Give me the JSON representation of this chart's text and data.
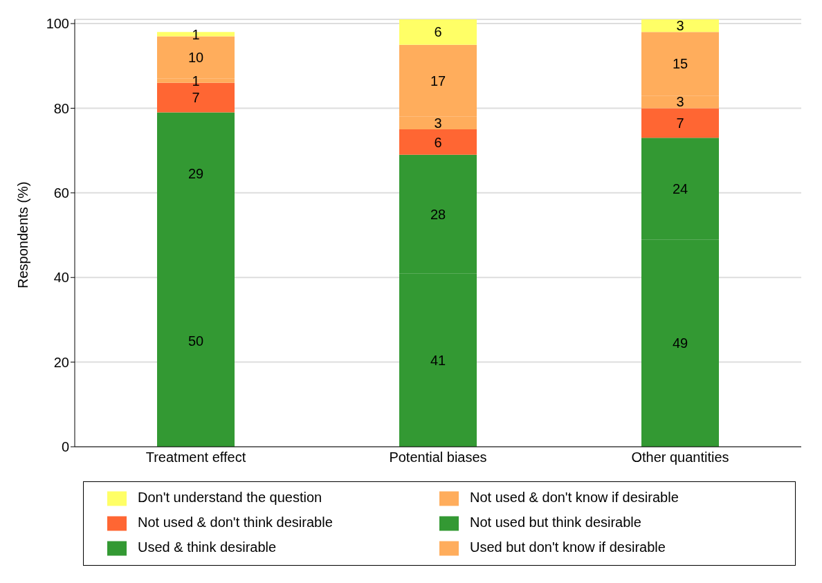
{
  "chart_data": {
    "type": "bar",
    "stacked": true,
    "ylabel": "Respondents (%)",
    "categories": [
      "Treatment effect",
      "Potential biases",
      "Other quantities"
    ],
    "series": [
      {
        "name": "Used & think desirable",
        "color": "#339933",
        "values": [
          50,
          41,
          49
        ]
      },
      {
        "name": "Not used but think desirable",
        "color": "#339933",
        "values": [
          29,
          28,
          24
        ]
      },
      {
        "name": "Not used & don't think desirable",
        "color": "#ff6633",
        "values": [
          7,
          6,
          7
        ]
      },
      {
        "name": "Used but don't know if desirable",
        "color": "#ffad5c",
        "values": [
          1,
          3,
          3
        ]
      },
      {
        "name": "Not used & don't know if desirable",
        "color": "#ffad5c",
        "values": [
          10,
          17,
          15
        ]
      },
      {
        "name": "Don't understand the question",
        "color": "#ffff66",
        "values": [
          1,
          6,
          3
        ]
      }
    ],
    "ylim": [
      0,
      101
    ],
    "yticks": [
      0,
      20,
      40,
      60,
      80,
      100
    ],
    "grid": "y",
    "legend": "bottom",
    "data_labels": true
  }
}
